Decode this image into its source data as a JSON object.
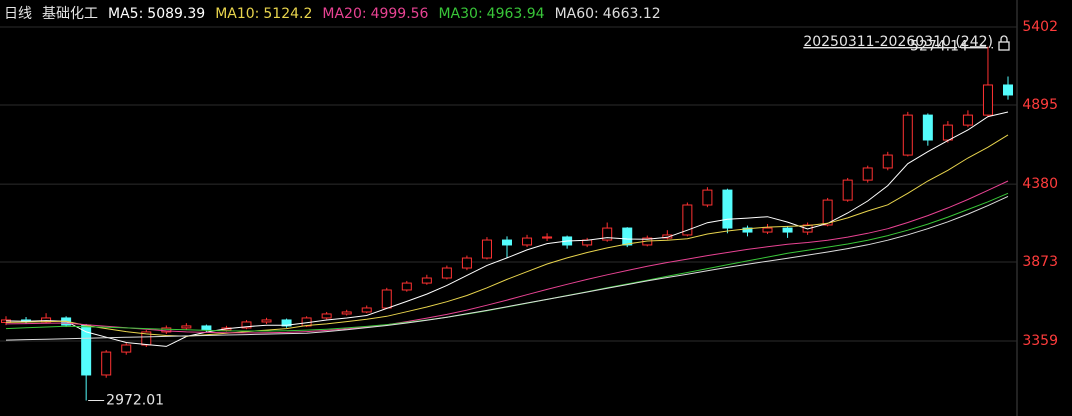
{
  "chart_data": {
    "type": "candlestick",
    "period": "日线",
    "name": "基础化工",
    "range_label": "20250311-20260310 (242)",
    "ylim": [
      2871,
      5578
    ],
    "yticks": [
      5402,
      4895,
      4380,
      3873,
      3359
    ],
    "up_color": "#ff3232",
    "down_color": "#54fcfc",
    "axis_color": "#ff3c3c",
    "grid": true,
    "candles": {
      "open": [
        3480,
        3496,
        3483,
        3509,
        3463,
        3138,
        3287,
        3333,
        3418,
        3444,
        3457,
        3431,
        3444,
        3483,
        3496,
        3457,
        3509,
        3535,
        3548,
        3574,
        3691,
        3736,
        3769,
        3834,
        3899,
        4016,
        3984,
        4029,
        4036,
        3984,
        4016,
        4094,
        3984,
        4029,
        4049,
        4244,
        4341,
        4094,
        4068,
        4094,
        4068,
        4114,
        4276,
        4406,
        4485,
        4569,
        4829,
        4667,
        4764,
        4829,
        5025
      ],
      "high": [
        3520,
        3515,
        3540,
        3520,
        3470,
        3300,
        3350,
        3430,
        3460,
        3475,
        3466,
        3458,
        3495,
        3510,
        3505,
        3520,
        3548,
        3562,
        3590,
        3705,
        3750,
        3790,
        3850,
        3915,
        4035,
        4040,
        4050,
        4060,
        4045,
        4030,
        4130,
        4100,
        4045,
        4080,
        4260,
        4360,
        4350,
        4110,
        4120,
        4105,
        4130,
        4290,
        4420,
        4500,
        4590,
        4850,
        4840,
        4790,
        4860,
        5274.14,
        5080
      ],
      "low": [
        3462,
        3470,
        3475,
        3450,
        2972.01,
        3120,
        3270,
        3320,
        3405,
        3430,
        3418,
        3420,
        3436,
        3470,
        3445,
        3450,
        3500,
        3525,
        3540,
        3568,
        3680,
        3725,
        3760,
        3820,
        3890,
        3900,
        3970,
        4010,
        3960,
        3970,
        4005,
        3970,
        3975,
        4020,
        4040,
        4230,
        4060,
        4040,
        4055,
        4030,
        4050,
        4105,
        4265,
        4390,
        4470,
        4560,
        4630,
        4650,
        4750,
        4815,
        4930
      ],
      "close": [
        3496,
        3483,
        3509,
        3463,
        3138,
        3287,
        3333,
        3418,
        3444,
        3457,
        3431,
        3444,
        3483,
        3496,
        3457,
        3509,
        3535,
        3548,
        3574,
        3691,
        3736,
        3769,
        3834,
        3899,
        4016,
        3984,
        4029,
        4036,
        3984,
        4016,
        4094,
        3984,
        4029,
        4049,
        4244,
        4341,
        4094,
        4068,
        4094,
        4068,
        4114,
        4276,
        4406,
        4485,
        4569,
        4829,
        4667,
        4764,
        4829,
        5025,
        4960
      ]
    },
    "series": [
      {
        "name": "MA5:",
        "last": 5089.39,
        "color": "#ffffff",
        "values": [
          3490,
          3488,
          3492,
          3488,
          3418,
          3384,
          3349,
          3336,
          3324,
          3388,
          3417,
          3439,
          3452,
          3462,
          3462,
          3478,
          3496,
          3509,
          3525,
          3571,
          3617,
          3664,
          3721,
          3786,
          3851,
          3900,
          3952,
          3993,
          4010,
          4014,
          4032,
          4023,
          4021,
          4034,
          4080,
          4129,
          4151,
          4159,
          4168,
          4133,
          4088,
          4124,
          4192,
          4270,
          4370,
          4513,
          4591,
          4663,
          4732,
          4819,
          4849
        ]
      },
      {
        "name": "MA10:",
        "last": 5124.2,
        "color": "#e8d44d",
        "values": [
          3480,
          3482,
          3485,
          3487,
          3460,
          3440,
          3420,
          3405,
          3395,
          3390,
          3400,
          3410,
          3420,
          3430,
          3440,
          3460,
          3470,
          3485,
          3500,
          3520,
          3550,
          3580,
          3615,
          3655,
          3705,
          3760,
          3810,
          3860,
          3900,
          3935,
          3965,
          3990,
          4010,
          4015,
          4025,
          4055,
          4075,
          4090,
          4100,
          4105,
          4110,
          4125,
          4160,
          4205,
          4245,
          4320,
          4400,
          4470,
          4550,
          4620,
          4700
        ]
      },
      {
        "name": "MA20:",
        "last": 4999.56,
        "color": "#e84393",
        "values": [
          3470,
          3472,
          3474,
          3476,
          3465,
          3455,
          3445,
          3435,
          3425,
          3418,
          3415,
          3413,
          3412,
          3413,
          3415,
          3420,
          3428,
          3438,
          3450,
          3465,
          3485,
          3508,
          3532,
          3560,
          3592,
          3625,
          3660,
          3695,
          3728,
          3760,
          3790,
          3818,
          3845,
          3870,
          3892,
          3915,
          3935,
          3955,
          3972,
          3988,
          4000,
          4015,
          4035,
          4060,
          4090,
          4130,
          4175,
          4225,
          4280,
          4340,
          4400
        ]
      },
      {
        "name": "MA30:",
        "last": 4963.94,
        "color": "#39c639",
        "values": [
          3440,
          3445,
          3450,
          3455,
          3452,
          3448,
          3444,
          3440,
          3436,
          3432,
          3428,
          3425,
          3424,
          3424,
          3426,
          3430,
          3436,
          3444,
          3454,
          3466,
          3480,
          3496,
          3514,
          3534,
          3556,
          3580,
          3605,
          3630,
          3655,
          3680,
          3705,
          3730,
          3755,
          3780,
          3805,
          3830,
          3855,
          3880,
          3905,
          3930,
          3950,
          3970,
          3990,
          4015,
          4045,
          4080,
          4120,
          4165,
          4215,
          4265,
          4320
        ]
      },
      {
        "name": "MA60:",
        "last": 4663.12,
        "color": "#dddddd",
        "values": [
          3365,
          3368,
          3371,
          3374,
          3377,
          3380,
          3383,
          3386,
          3389,
          3392,
          3395,
          3398,
          3401,
          3404,
          3407,
          3410,
          3420,
          3432,
          3446,
          3460,
          3476,
          3494,
          3514,
          3536,
          3558,
          3582,
          3606,
          3630,
          3654,
          3678,
          3702,
          3726,
          3750,
          3772,
          3794,
          3816,
          3838,
          3858,
          3878,
          3898,
          3918,
          3938,
          3960,
          3985,
          4015,
          4050,
          4090,
          4135,
          4185,
          4240,
          4300
        ]
      }
    ]
  }
}
